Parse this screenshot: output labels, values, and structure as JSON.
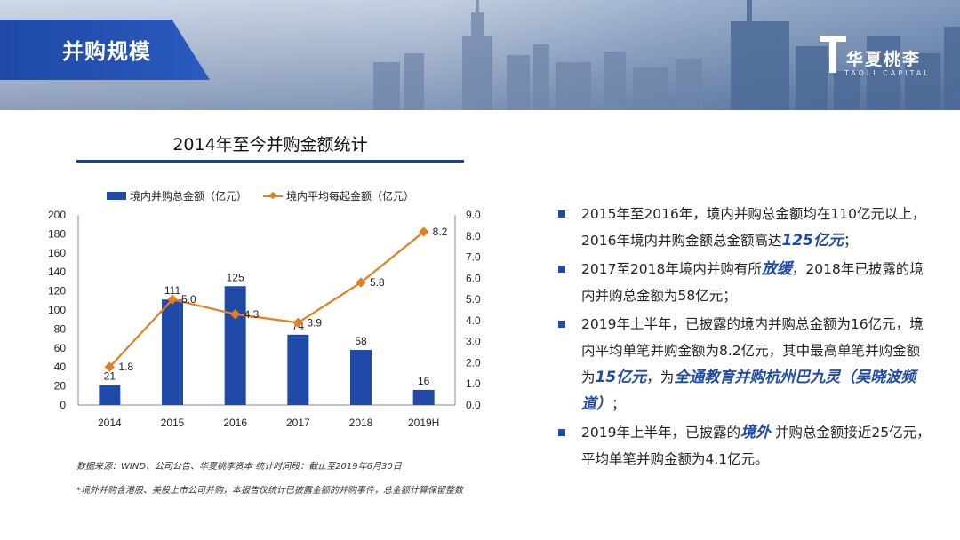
{
  "header": {
    "title": "并购规模",
    "logo_brand": "华夏桃李",
    "logo_sub": "TAOLI CAPITAL",
    "banner_color": "#1f4aa8"
  },
  "chart_title": "2014年至今并购金额统计",
  "chart_data": {
    "type": "bar",
    "categories": [
      "2014",
      "2015",
      "2016",
      "2017",
      "2018",
      "2019H"
    ],
    "series": [
      {
        "name": "境内并购总金额（亿元）",
        "type": "bar",
        "axis": "left",
        "color": "#1f4aa8",
        "values": [
          21,
          111,
          125,
          74,
          58,
          16
        ],
        "labels": [
          "21",
          "111",
          "125",
          "74",
          "58",
          "16"
        ]
      },
      {
        "name": "境内平均每起金额（亿元）",
        "type": "line",
        "axis": "right",
        "color": "#e67e22",
        "values": [
          1.8,
          5.0,
          4.3,
          3.9,
          5.8,
          8.2
        ],
        "labels": [
          "1.8",
          "5.0",
          "4.3",
          "3.9",
          "5.8",
          "8.2"
        ]
      }
    ],
    "y_left": {
      "min": 0,
      "max": 200,
      "ticks": [
        "0",
        "20",
        "40",
        "60",
        "80",
        "100",
        "120",
        "140",
        "160",
        "180",
        "200"
      ]
    },
    "y_right": {
      "min": 0,
      "max": 9,
      "ticks": [
        "0.0",
        "1.0",
        "2.0",
        "3.0",
        "4.0",
        "5.0",
        "6.0",
        "7.0",
        "8.0",
        "9.0"
      ]
    },
    "legend_position": "top",
    "grid": false
  },
  "source": "数据来源：WIND、公司公告、华夏桃李资本   统计时间段：截止至2019年6月30日",
  "note": "*境外并购含港股、美股上市公司并购，本报告仅统计已披露金额的并购事件，总金额计算保留整数",
  "bullets": [
    {
      "pre": "2015年至2016年，境内并购总金额均在110亿元以上，2016年境内并购金额总金额高达",
      "em": "125亿元",
      "post": "；"
    },
    {
      "pre": "2017至2018年境内并购有所",
      "em": "放缓",
      "post": "，2018年已披露的境内并购总金额为58亿元；"
    },
    {
      "pre": "2019年上半年，已披露的境内并购总金额为16亿元，境内平均单笔并购金额为8.2亿元，其中最高单笔并购金额为",
      "em": "15亿元",
      "mid": "，为",
      "em2": "全通教育并购杭州巴九灵（吴晓波频道）",
      "post": "；"
    },
    {
      "pre": "2019年上半年，已披露的",
      "em": "境外",
      "post": " 并购总金额接近25亿元，平均单笔并购金额为4.1亿元。"
    }
  ]
}
